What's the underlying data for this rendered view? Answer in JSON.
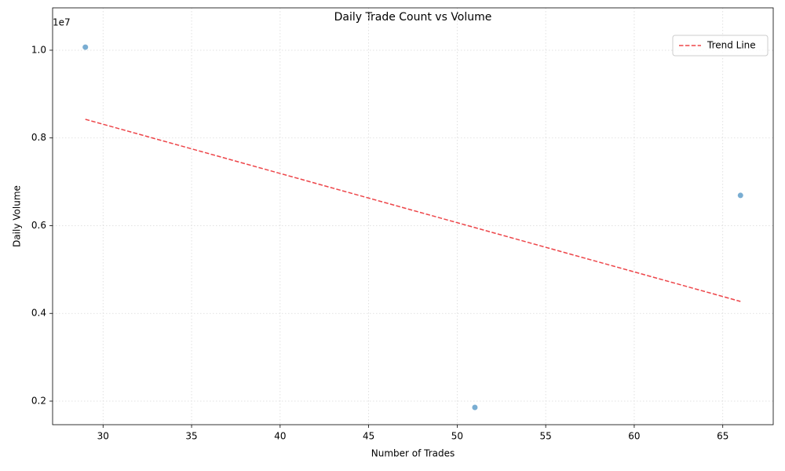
{
  "chart_data": {
    "type": "scatter",
    "title": "Daily Trade Count vs Volume",
    "x_label": "Number of Trades",
    "y_label": "Daily Volume",
    "y_offset_label": "1e7",
    "series": [
      {
        "type": "scatter",
        "color": "#1f77b4",
        "x": [
          29,
          51,
          66
        ],
        "values": [
          10070000,
          1857000,
          6690000
        ]
      },
      {
        "type": "line",
        "name": "Trend Line",
        "color": "#e8161b",
        "dashed": true,
        "x": [
          29,
          66
        ],
        "values": [
          8425000,
          4273000
        ]
      }
    ],
    "xlim": [
      27.15,
      67.85
    ],
    "ylim": [
      1463000,
      10966000
    ],
    "xticks": [
      30,
      35,
      40,
      45,
      50,
      55,
      60,
      65
    ],
    "yticks": [
      {
        "value": 2000000,
        "label": "0.2"
      },
      {
        "value": 4000000,
        "label": "0.4"
      },
      {
        "value": 6000000,
        "label": "0.6"
      },
      {
        "value": 8000000,
        "label": "0.8"
      },
      {
        "value": 10000000,
        "label": "1.0"
      }
    ],
    "grid": true,
    "legend": "upper-right"
  }
}
